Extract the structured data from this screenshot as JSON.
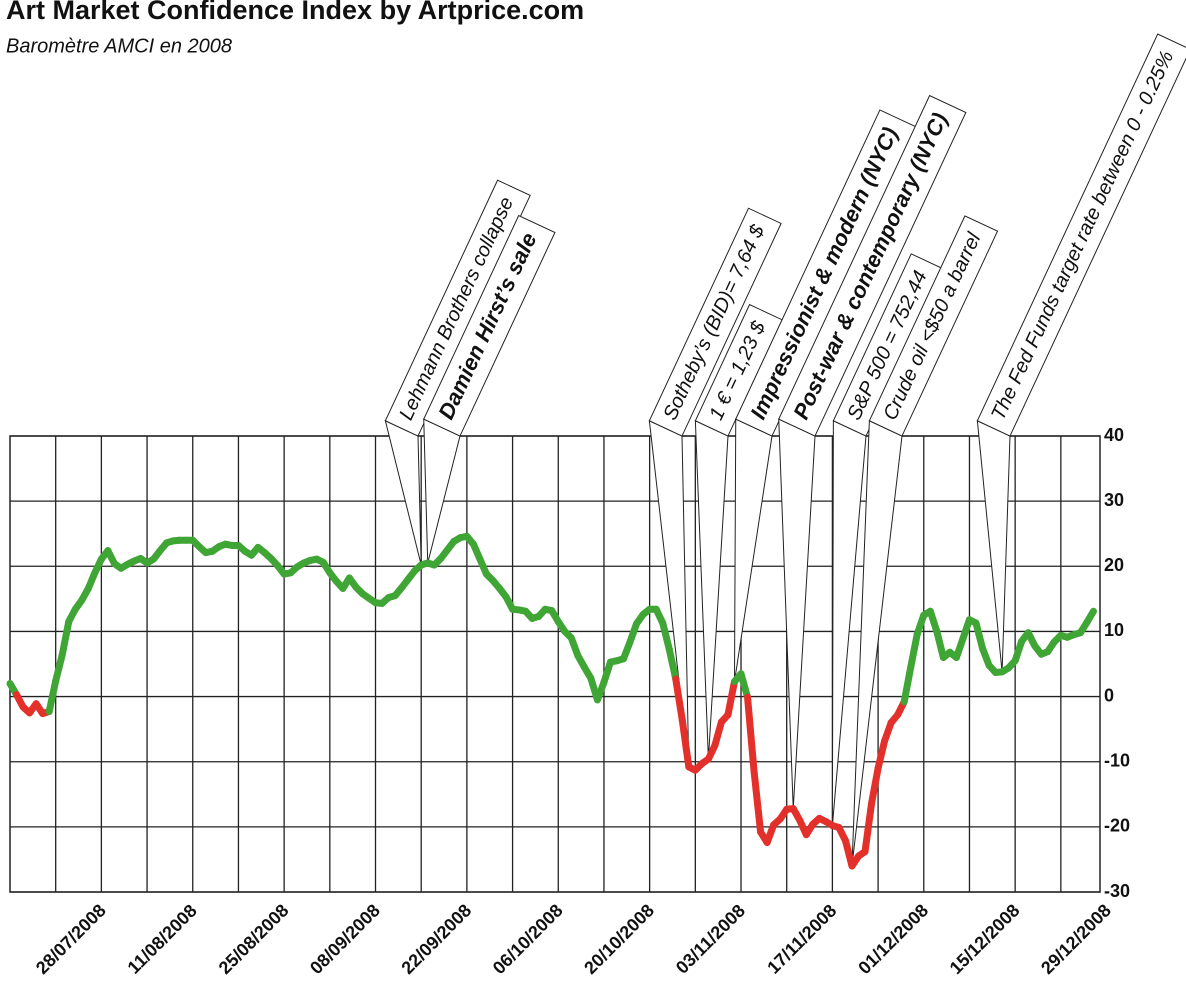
{
  "chart_data": {
    "type": "line",
    "title": "Art Market Confidence Index by Artprice.com",
    "subtitle": "Baromètre AMCI en 2008",
    "x": [
      "21/07/2008",
      "22/07/2008",
      "23/07/2008",
      "24/07/2008",
      "25/07/2008",
      "26/07/2008",
      "27/07/2008",
      "28/07/2008",
      "29/07/2008",
      "30/07/2008",
      "31/07/2008",
      "01/08/2008",
      "02/08/2008",
      "03/08/2008",
      "04/08/2008",
      "05/08/2008",
      "06/08/2008",
      "07/08/2008",
      "08/08/2008",
      "09/08/2008",
      "10/08/2008",
      "11/08/2008",
      "12/08/2008",
      "13/08/2008",
      "14/08/2008",
      "15/08/2008",
      "16/08/2008",
      "17/08/2008",
      "18/08/2008",
      "19/08/2008",
      "20/08/2008",
      "21/08/2008",
      "22/08/2008",
      "23/08/2008",
      "24/08/2008",
      "25/08/2008",
      "26/08/2008",
      "27/08/2008",
      "28/08/2008",
      "29/08/2008",
      "30/08/2008",
      "31/08/2008",
      "01/09/2008",
      "02/09/2008",
      "03/09/2008",
      "04/09/2008",
      "05/09/2008",
      "06/09/2008",
      "07/09/2008",
      "08/09/2008",
      "09/09/2008",
      "10/09/2008",
      "11/09/2008",
      "12/09/2008",
      "13/09/2008",
      "14/09/2008",
      "15/09/2008",
      "16/09/2008",
      "17/09/2008",
      "18/09/2008",
      "19/09/2008",
      "20/09/2008",
      "21/09/2008",
      "22/09/2008",
      "23/09/2008",
      "24/09/2008",
      "25/09/2008",
      "26/09/2008",
      "27/09/2008",
      "28/09/2008",
      "29/09/2008",
      "30/09/2008",
      "01/10/2008",
      "02/10/2008",
      "03/10/2008",
      "04/10/2008",
      "05/10/2008",
      "06/10/2008",
      "07/10/2008",
      "08/10/2008",
      "09/10/2008",
      "10/10/2008",
      "11/10/2008",
      "12/10/2008",
      "13/10/2008",
      "14/10/2008",
      "15/10/2008",
      "16/10/2008",
      "17/10/2008",
      "18/10/2008",
      "19/10/2008",
      "20/10/2008",
      "21/10/2008",
      "22/10/2008",
      "23/10/2008",
      "24/10/2008",
      "25/10/2008",
      "26/10/2008",
      "27/10/2008",
      "28/10/2008",
      "29/10/2008",
      "30/10/2008",
      "31/10/2008",
      "01/11/2008",
      "02/11/2008",
      "03/11/2008",
      "04/11/2008",
      "05/11/2008",
      "06/11/2008",
      "07/11/2008",
      "08/11/2008",
      "09/11/2008",
      "10/11/2008",
      "11/11/2008",
      "12/11/2008",
      "13/11/2008",
      "14/11/2008",
      "15/11/2008",
      "16/11/2008",
      "17/11/2008",
      "18/11/2008",
      "19/11/2008",
      "20/11/2008",
      "21/11/2008",
      "22/11/2008",
      "23/11/2008",
      "24/11/2008",
      "25/11/2008",
      "26/11/2008",
      "27/11/2008",
      "28/11/2008",
      "29/11/2008",
      "30/11/2008",
      "01/12/2008",
      "02/12/2008",
      "03/12/2008",
      "04/12/2008",
      "05/12/2008",
      "06/12/2008",
      "07/12/2008",
      "08/12/2008",
      "09/12/2008",
      "10/12/2008",
      "11/12/2008",
      "12/12/2008",
      "13/12/2008",
      "14/12/2008",
      "15/12/2008",
      "16/12/2008",
      "17/12/2008",
      "18/12/2008",
      "19/12/2008",
      "20/12/2008",
      "21/12/2008",
      "22/12/2008",
      "23/12/2008",
      "24/12/2008",
      "25/12/2008",
      "26/12/2008",
      "27/12/2008",
      "28/12/2008",
      "29/12/2008",
      "30/12/2008",
      "31/12/2008",
      "01/01/2009",
      "02/01/2009",
      "03/01/2009"
    ],
    "values": [
      2,
      0.3,
      -1.6,
      -2.5,
      -1.1,
      -2.6,
      -2.3,
      2.4,
      6.4,
      11.5,
      13.4,
      14.8,
      16.6,
      19,
      21.1,
      22.4,
      20.4,
      19.7,
      20.3,
      20.8,
      21.2,
      20.5,
      21.1,
      22.4,
      23.6,
      23.9,
      24,
      24,
      24,
      23,
      22.1,
      22.3,
      23,
      23.4,
      23.2,
      23.2,
      22.3,
      21.7,
      22.9,
      22.1,
      21.2,
      20.1,
      18.8,
      19,
      19.9,
      20.5,
      20.9,
      21.1,
      20.6,
      19,
      17.7,
      16.6,
      18.2,
      16.8,
      15.8,
      15.1,
      14.4,
      14.3,
      15.2,
      15.5,
      16.7,
      18,
      19.3,
      20.2,
      20.5,
      20.2,
      21.2,
      22.5,
      23.8,
      24.4,
      24.6,
      23.4,
      21.1,
      18.8,
      17.8,
      16.6,
      15.3,
      13.4,
      13.3,
      13.1,
      12,
      12.3,
      13.4,
      13.2,
      11.5,
      10,
      9,
      6.3,
      4.5,
      2.8,
      -0.5,
      2.2,
      5.3,
      5.5,
      5.8,
      8.4,
      11.2,
      12.6,
      13.4,
      13.4,
      11.3,
      7.3,
      2.7,
      -3.6,
      -10.8,
      -11.3,
      -10.3,
      -9.6,
      -7.5,
      -3.9,
      -2.8,
      2.3,
      3.5,
      -0.1,
      -11.5,
      -20.8,
      -22.4,
      -19.7,
      -18.8,
      -17.3,
      -17.2,
      -19,
      -21.2,
      -19.6,
      -18.7,
      -19.2,
      -19.8,
      -20.1,
      -22.1,
      -26,
      -24.5,
      -23.8,
      -16.4,
      -11,
      -6.8,
      -4,
      -2.8,
      -0.8,
      4.5,
      9.6,
      12.5,
      13.1,
      10,
      6,
      6.8,
      6,
      8.9,
      11.8,
      11.3,
      7.4,
      4.8,
      3.7,
      3.8,
      4.4,
      5.5,
      8.5,
      9.8,
      7.8,
      6.5,
      6.9,
      8.4,
      9.4,
      9.1,
      9.5,
      9.8,
      11.4,
      13.1
    ],
    "color_positive": "#3fa535",
    "color_negative": "#e3302a",
    "xlim": [
      "21/07/2008",
      "04/01/2009"
    ],
    "xticks": [
      "28/07/2008",
      "11/08/2008",
      "25/08/2008",
      "08/09/2008",
      "22/09/2008",
      "06/10/2008",
      "20/10/2008",
      "03/11/2008",
      "17/11/2008",
      "01/12/2008",
      "15/12/2008",
      "29/12/2008"
    ],
    "ylim": [
      -30,
      40
    ],
    "yticks": [
      -30,
      -20,
      -10,
      0,
      10,
      20,
      30,
      40
    ],
    "grid": true,
    "annotations": [
      {
        "text": "Lehmann Brothers collapse",
        "x": "22/09/2008",
        "bold": false
      },
      {
        "text": "Damien Hirst’s sale",
        "x": "23/09/2008",
        "bold": true
      },
      {
        "text": "Sotheby’s (BID)= 7,64 $",
        "x": "02/11/2008",
        "bold": false
      },
      {
        "text": "1 € = 1,23 $",
        "x": "05/11/2008",
        "bold": false
      },
      {
        "text": "Impressionist & modern (NYC)",
        "x": "09/11/2008",
        "bold": true
      },
      {
        "text": "Post-war & contemporary (NYC)",
        "x": "18/11/2008",
        "bold": true
      },
      {
        "text": "S&P 500 = 752,44",
        "x": "24/11/2008",
        "bold": false
      },
      {
        "text": "Crude oil <$50 a barrel",
        "x": "27/11/2008",
        "bold": false
      },
      {
        "text": "The Fed Funds target rate between 0 - 0.25%",
        "x": "20/12/2008",
        "bold": false
      }
    ]
  }
}
